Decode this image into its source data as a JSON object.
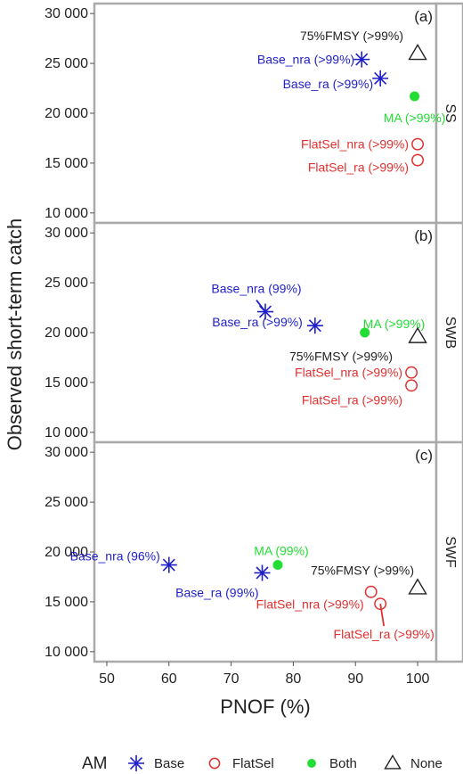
{
  "colors": {
    "Base": "#1f1fc8",
    "FlatSel": "#e03030",
    "Both": "#22dd33",
    "None": "#222222",
    "frame": "#aaaaaa"
  },
  "chart_data": {
    "type": "scatter",
    "xlabel": "PNOF (%)",
    "ylabel": "Observed short-term catch",
    "xlim": [
      48,
      103
    ],
    "xticks": [
      50,
      60,
      70,
      80,
      90,
      100
    ],
    "ylim": [
      9000,
      31000
    ],
    "yticks": [
      10000,
      15000,
      20000,
      25000,
      30000
    ],
    "ytick_labels": [
      "10 000",
      "15 000",
      "20 000",
      "25 000",
      "30 000"
    ],
    "xtick_labels": [
      "50",
      "60",
      "70",
      "80",
      "90",
      "100"
    ],
    "legend": {
      "title": "AM",
      "entries": [
        {
          "label": "Base",
          "shape": "star",
          "am": "Base"
        },
        {
          "label": "FlatSel",
          "shape": "circle-open",
          "am": "FlatSel"
        },
        {
          "label": "Both",
          "shape": "circle-filled",
          "am": "Both"
        },
        {
          "label": "None",
          "shape": "triangle-open",
          "am": "None"
        }
      ],
      "position": "bottom"
    },
    "panels": [
      {
        "tag": "(a)",
        "strip": "SS",
        "points": [
          {
            "x": 100,
            "y": 26000,
            "am": "None",
            "shape": "triangle-open",
            "label": "75%FMSY (>99%)"
          },
          {
            "x": 91,
            "y": 25400,
            "am": "Base",
            "shape": "star",
            "label": "Base_nra (>99%)"
          },
          {
            "x": 94,
            "y": 23500,
            "am": "Base",
            "shape": "star",
            "label": "Base_ra (>99%)"
          },
          {
            "x": 99.5,
            "y": 21700,
            "am": "Both",
            "shape": "circle-filled",
            "label": "MA (>99%)"
          },
          {
            "x": 100,
            "y": 16900,
            "am": "FlatSel",
            "shape": "circle-open",
            "label": "FlatSel_nra (>99%)"
          },
          {
            "x": 100,
            "y": 15300,
            "am": "FlatSel",
            "shape": "circle-open",
            "label": "FlatSel_ra (>99%)"
          }
        ]
      },
      {
        "tag": "(b)",
        "strip": "SWB",
        "points": [
          {
            "x": 75.5,
            "y": 22100,
            "am": "Base",
            "shape": "star",
            "label": "Base_nra (99%)"
          },
          {
            "x": 83.5,
            "y": 20700,
            "am": "Base",
            "shape": "star",
            "label": "Base_ra (>99%)"
          },
          {
            "x": 91.5,
            "y": 20000,
            "am": "Both",
            "shape": "circle-filled",
            "label": "MA (>99%)"
          },
          {
            "x": 100,
            "y": 19600,
            "am": "None",
            "shape": "triangle-open",
            "label": "75%FMSY (>99%)"
          },
          {
            "x": 99,
            "y": 16000,
            "am": "FlatSel",
            "shape": "circle-open",
            "label": "FlatSel_nra (>99%)"
          },
          {
            "x": 99,
            "y": 14700,
            "am": "FlatSel",
            "shape": "circle-open",
            "label": "FlatSel_ra (>99%)"
          }
        ]
      },
      {
        "tag": "(c)",
        "strip": "SWF",
        "points": [
          {
            "x": 60,
            "y": 18700,
            "am": "Base",
            "shape": "star",
            "label": "Base_nra (96%)"
          },
          {
            "x": 75,
            "y": 17900,
            "am": "Base",
            "shape": "star",
            "label": "Base_ra (99%)"
          },
          {
            "x": 77.5,
            "y": 18700,
            "am": "Both",
            "shape": "circle-filled",
            "label": "MA (99%)"
          },
          {
            "x": 100,
            "y": 16400,
            "am": "None",
            "shape": "triangle-open",
            "label": "75%FMSY (>99%)"
          },
          {
            "x": 92.5,
            "y": 16000,
            "am": "FlatSel",
            "shape": "circle-open",
            "label": "FlatSel_nra (>99%)"
          },
          {
            "x": 94,
            "y": 14800,
            "am": "FlatSel",
            "shape": "circle-open",
            "label": "FlatSel_ra (>99%)"
          }
        ]
      }
    ]
  }
}
